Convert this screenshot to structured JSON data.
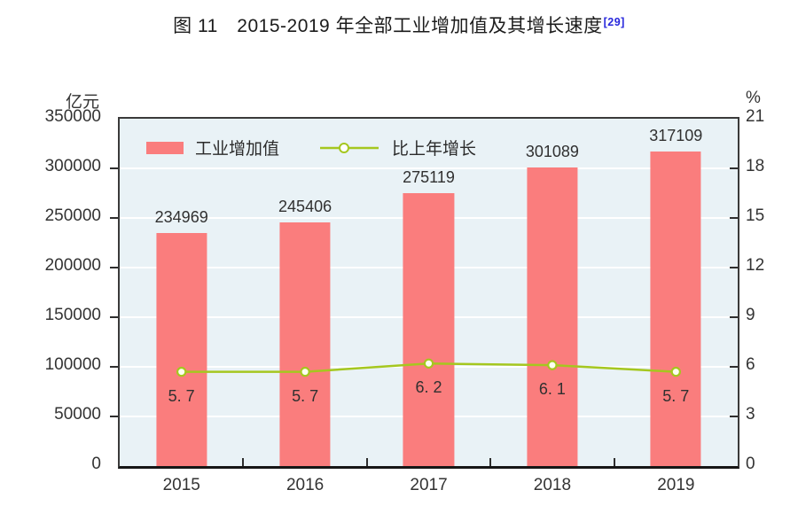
{
  "title": {
    "text": "图 11　2015-2019 年全部工业增加值及其增长速度",
    "superscript": "[29]"
  },
  "axes": {
    "left_unit": "亿元",
    "right_unit": "%",
    "left_ticks": [
      "350000",
      "300000",
      "250000",
      "200000",
      "150000",
      "100000",
      "50000",
      "0"
    ],
    "right_ticks": [
      "21",
      "18",
      "15",
      "12",
      "9",
      "6",
      "3",
      "0"
    ]
  },
  "legend": [
    {
      "label": "工业增加值",
      "marker": "bar-swatch"
    },
    {
      "label": "比上年增长",
      "marker": "line-with-circle"
    }
  ],
  "chart_data": {
    "type": "bar+line",
    "categories": [
      "2015",
      "2016",
      "2017",
      "2018",
      "2019"
    ],
    "series": [
      {
        "name": "工业增加值",
        "type": "bar",
        "axis": "left",
        "unit": "亿元",
        "values": [
          234969,
          245406,
          275119,
          301089,
          317109
        ],
        "labels": [
          "234969",
          "245406",
          "275119",
          "301089",
          "317109"
        ]
      },
      {
        "name": "比上年增长",
        "type": "line",
        "axis": "right",
        "unit": "%",
        "values": [
          5.7,
          5.7,
          6.2,
          6.1,
          5.7
        ],
        "labels": [
          "5. 7",
          "5. 7",
          "6. 2",
          "6. 1",
          "5. 7"
        ]
      }
    ],
    "ylim_left": [
      0,
      350000
    ],
    "ytick_step_left": 50000,
    "ylim_right": [
      0,
      21
    ],
    "ytick_step_right": 3,
    "grid": "horizontal-white",
    "legend_position": "top-left-inside",
    "colors": {
      "bar": "#FA7D7D",
      "line": "#A5C71F",
      "marker_fill": "#FDFFF0",
      "plot_bg": "#E9F2F6",
      "grid": "#FFFFFF",
      "axis": "#3A3A3A",
      "text": "#333333",
      "ref": "#2828DC"
    }
  }
}
